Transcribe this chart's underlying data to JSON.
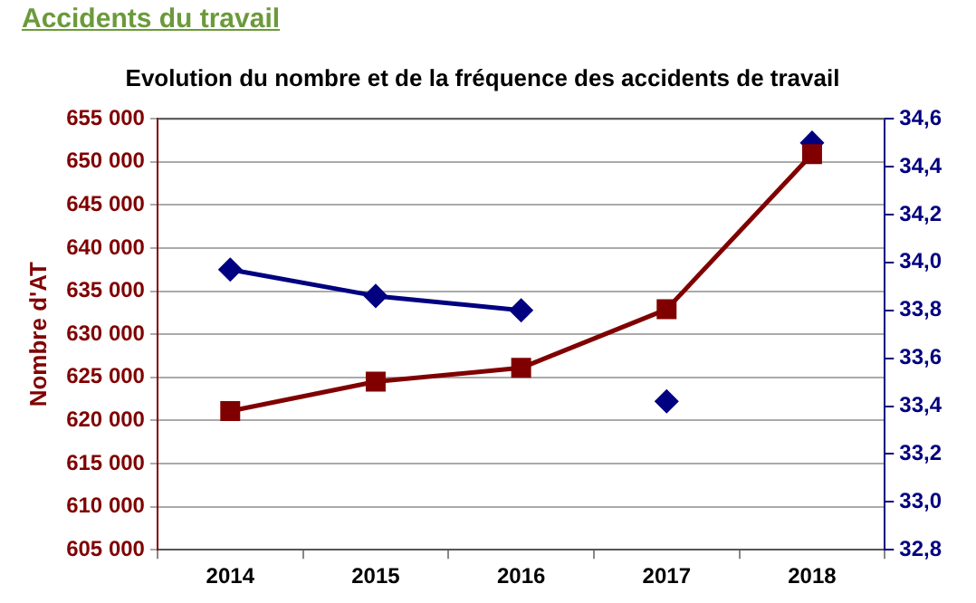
{
  "chart_data": {
    "type": "line",
    "title": "Accidents du travail",
    "subtitle": "Evolution du nombre et de la fréquence des accidents de travail",
    "ylabel": "Nombre d'AT",
    "categories": [
      "2014",
      "2015",
      "2016",
      "2017",
      "2018"
    ],
    "series": [
      {
        "color": "#800000",
        "marker": "square",
        "values": [
          621100,
          624500,
          626100,
          632900,
          650900
        ]
      },
      {
        "type": "line",
        "axis": "y2",
        "color": "#000080",
        "marker": "diamond",
        "values": [
          33.97,
          33.86,
          33.8,
          null,
          null
        ]
      },
      {
        "type": "scatter",
        "axis": "y2",
        "color": "#000080",
        "marker": "diamond",
        "values": [
          null,
          null,
          null,
          33.42,
          34.5
        ]
      }
    ],
    "ylim": [
      605000,
      655000
    ],
    "yticks": [
      {
        "value": 605000,
        "label": "605 000"
      },
      {
        "value": 610000,
        "label": "610 000"
      },
      {
        "value": 615000,
        "label": "615 000"
      },
      {
        "value": 620000,
        "label": "620 000"
      },
      {
        "value": 625000,
        "label": "625 000"
      },
      {
        "value": 630000,
        "label": "630 000"
      },
      {
        "value": 635000,
        "label": "635 000"
      },
      {
        "value": 640000,
        "label": "640 000"
      },
      {
        "value": 645000,
        "label": "645 000"
      },
      {
        "value": 650000,
        "label": "650 000"
      },
      {
        "value": 655000,
        "label": "655 000"
      }
    ],
    "y2lim": [
      32.8,
      34.6
    ],
    "y2ticks": [
      {
        "value": 32.8,
        "label": "32,8"
      },
      {
        "value": 33,
        "label": "33,0"
      },
      {
        "value": 33.2,
        "label": "33,2"
      },
      {
        "value": 33.4,
        "label": "33,4"
      },
      {
        "value": 33.6,
        "label": "33,6"
      },
      {
        "value": 33.8,
        "label": "33,8"
      },
      {
        "value": 34,
        "label": "34,0"
      },
      {
        "value": 34.2,
        "label": "34,2"
      },
      {
        "value": 34.4,
        "label": "34,4"
      },
      {
        "value": 34.6,
        "label": "34,6"
      }
    ],
    "grid": "y"
  }
}
